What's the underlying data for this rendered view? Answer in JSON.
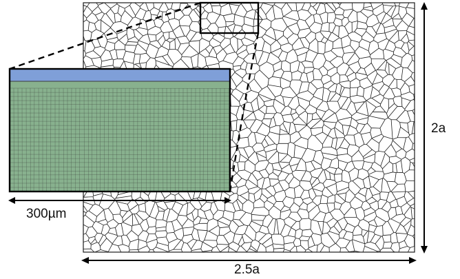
{
  "figure": {
    "dimension_labels": {
      "inset_scale": "300µm",
      "domain_height": "2a",
      "domain_width": "2.5a"
    },
    "colors": {
      "grain_boundary": "#1a1a1a",
      "grain_fill": "#ffffff",
      "inset_top_band": "#7f9fd8",
      "annotation": "#000000"
    },
    "inset_grain_palette": [
      "#6f8ca8",
      "#8a9a58",
      "#b06a4a",
      "#7fa07a",
      "#9a9290",
      "#c6b25e",
      "#5d7396",
      "#a7875f",
      "#88b18e",
      "#7a6f8e",
      "#b9a07a",
      "#6b8f6e",
      "#a04a40",
      "#8fa5b5",
      "#9f9a48"
    ]
  }
}
